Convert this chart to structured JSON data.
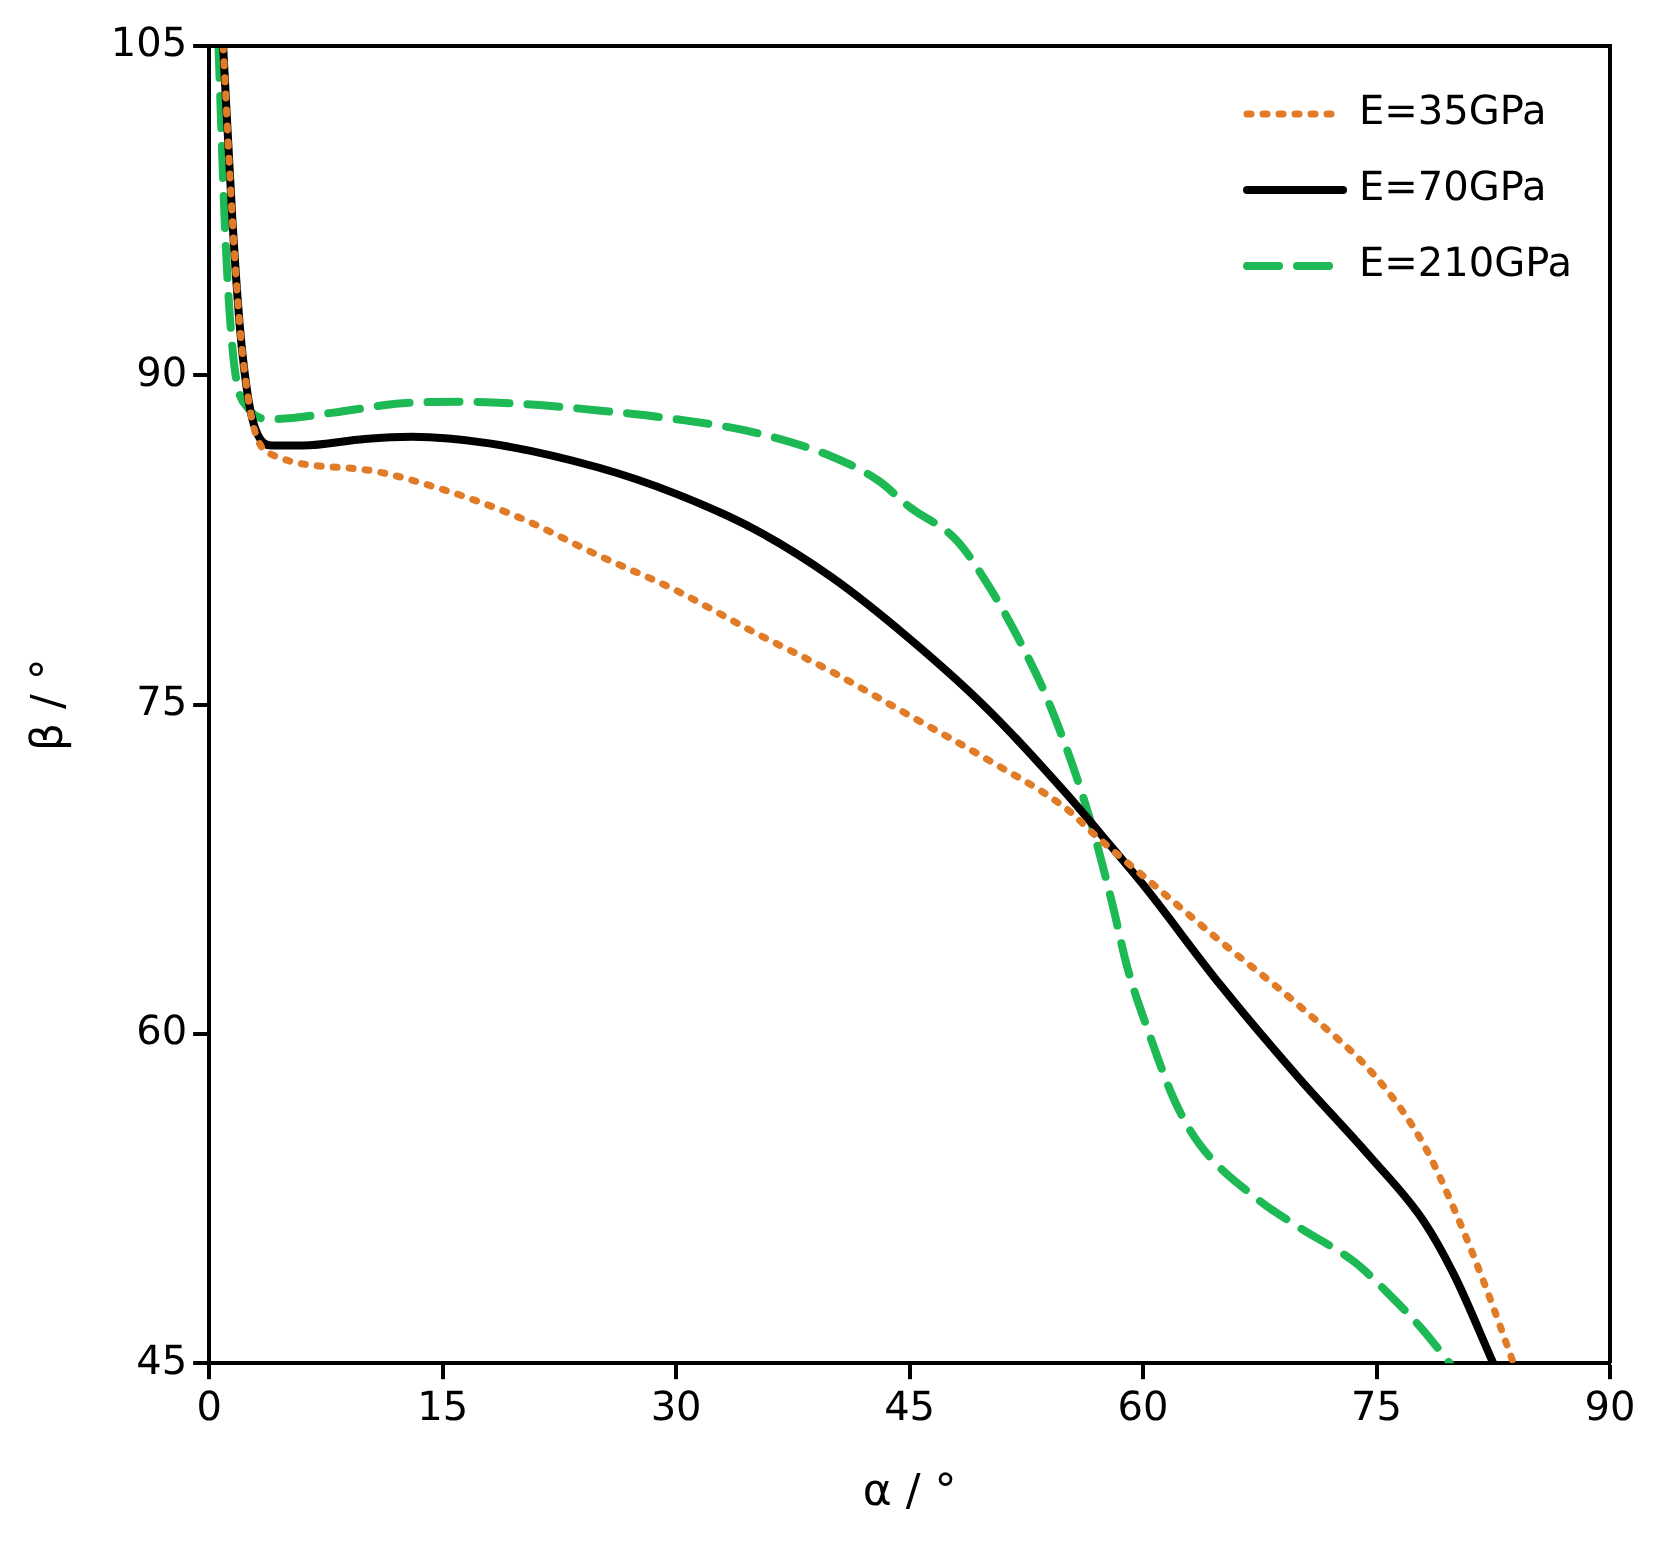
{
  "chart_data": {
    "type": "line",
    "xlabel": "α / °",
    "ylabel": "β / °",
    "xlim": [
      0,
      90
    ],
    "ylim": [
      45,
      105
    ],
    "xticks": [
      0,
      15,
      30,
      45,
      60,
      75,
      90
    ],
    "yticks": [
      45,
      60,
      75,
      90,
      105
    ],
    "grid": false,
    "legend": "top right",
    "marker": "none",
    "series": [
      {
        "name": "E=35GPa",
        "color": "#e07b28",
        "line_style": "dotted",
        "x": [
          0.9,
          1.5,
          2,
          2.5,
          3,
          4,
          10,
          15,
          20,
          25,
          30,
          35,
          40,
          45,
          50,
          55,
          57,
          60,
          65,
          70,
          75,
          78,
          80,
          82,
          83.8
        ],
        "values": [
          105,
          97,
          92,
          89,
          87.3,
          86.4,
          85.7,
          84.8,
          83.5,
          81.8,
          80.2,
          78.3,
          76.5,
          74.5,
          72.5,
          70.3,
          69,
          67.2,
          64.2,
          61.3,
          58,
          55,
          52,
          48.5,
          45
        ]
      },
      {
        "name": "E=70GPa",
        "color": "#000000",
        "line_style": "solid",
        "x": [
          0.9,
          1.5,
          2,
          2.5,
          3,
          4,
          6,
          10,
          13,
          18,
          25,
          30,
          35,
          40,
          45,
          50,
          55,
          58,
          60,
          65,
          70,
          74.6,
          78,
          80,
          82.5
        ],
        "values": [
          105,
          97,
          92,
          89,
          87.5,
          86.8,
          86.8,
          87.1,
          87.2,
          86.9,
          85.8,
          84.6,
          83,
          80.8,
          78,
          74.8,
          71,
          68.5,
          66.8,
          62.2,
          58,
          54.4,
          51.5,
          49,
          45
        ]
      },
      {
        "name": "E=210GPa",
        "color": "#1db954",
        "line_style": "dashed",
        "x": [
          0.6,
          1,
          1.3,
          1.7,
          2.5,
          4,
          8,
          12,
          16,
          20,
          25,
          30,
          35,
          40,
          43,
          45,
          48,
          50,
          52,
          54,
          56.5,
          58,
          59,
          60.4,
          62,
          63.6,
          67.3,
          70,
          73.6,
          76,
          78,
          79.7
        ],
        "values": [
          105,
          97,
          93,
          90,
          88.5,
          88,
          88.3,
          88.7,
          88.8,
          88.7,
          88.4,
          88,
          87.4,
          86.3,
          85.2,
          84,
          82.5,
          80.5,
          78,
          75,
          70,
          66,
          63,
          60,
          57,
          55,
          52.5,
          51.2,
          49.6,
          48,
          46.5,
          45
        ]
      }
    ]
  }
}
